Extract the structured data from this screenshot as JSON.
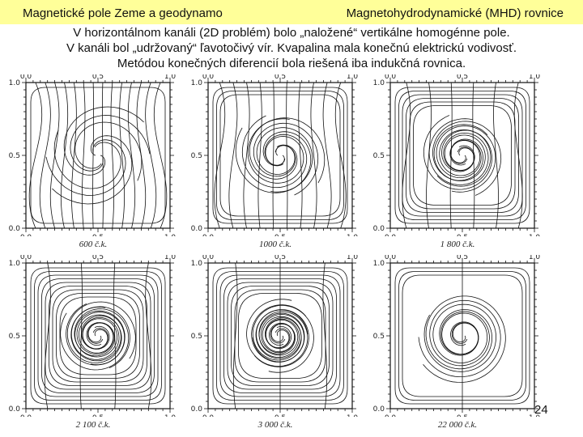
{
  "header": {
    "left_title": "Magnetické pole Zeme a geodynamo",
    "right_title": "Magnetohydrodynamické (MHD) rovnice"
  },
  "intro": [
    "V horizontálnom kanáli (2D problém) bolo „naložené“ vertikálne homogénne pole.",
    "V kanáli bol „udržovaný“ ľavotočivý vír. Kvapalina mala konečnú elektrickú vodivosť.",
    "Metódou konečných diferencií bola riešená iba indukčná rovnica."
  ],
  "axis_ticks": {
    "top": [
      "0.0",
      "0.5",
      "1.0"
    ],
    "left": [
      "1.0",
      "0.5",
      "0.0"
    ]
  },
  "panels": [
    {
      "caption": "600 č.k.",
      "stage": 0
    },
    {
      "caption": "1000 č.k.",
      "stage": 1
    },
    {
      "caption": "1 800 č.k.",
      "stage": 2
    },
    {
      "caption": "2 100 č.k.",
      "stage": 3
    },
    {
      "caption": "3 000 č.k.",
      "stage": 4
    },
    {
      "caption": "22 000 č.k.",
      "stage": 5
    }
  ],
  "page_number": "24",
  "colors": {
    "header_bg": "#ffff99",
    "line": "#111111"
  }
}
